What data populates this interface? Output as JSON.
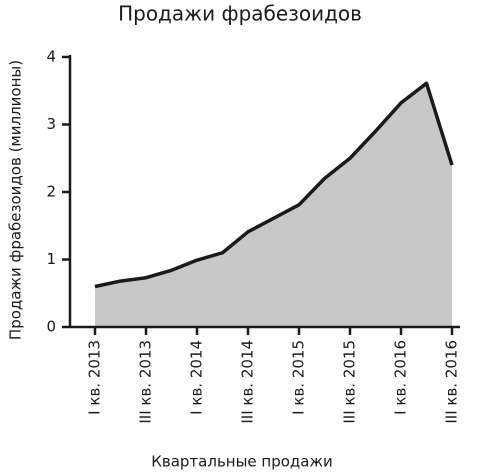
{
  "chart_data": {
    "type": "area",
    "title": "Продажи фрабезоидов",
    "y_label": "Продажи фрабезоидов (миллионы)",
    "x_label": "Квартальные продажи",
    "categories": [
      "I кв. 2013",
      null,
      "III кв. 2013",
      null,
      "I кв. 2014",
      null,
      "III кв. 2014",
      null,
      "I кв. 2015",
      null,
      "III кв. 2015",
      null,
      "I кв. 2016",
      null,
      "III кв. 2016"
    ],
    "values": [
      0.6,
      0.68,
      0.73,
      0.84,
      0.99,
      1.1,
      1.41,
      1.61,
      1.81,
      2.2,
      2.5,
      2.9,
      3.32,
      3.61,
      2.4
    ],
    "color": "#c8c8c8",
    "line_color": "#1a1a1a",
    "ylim": [
      0,
      4
    ],
    "yticks": [
      0,
      1,
      2,
      3,
      4
    ],
    "grid": false
  }
}
